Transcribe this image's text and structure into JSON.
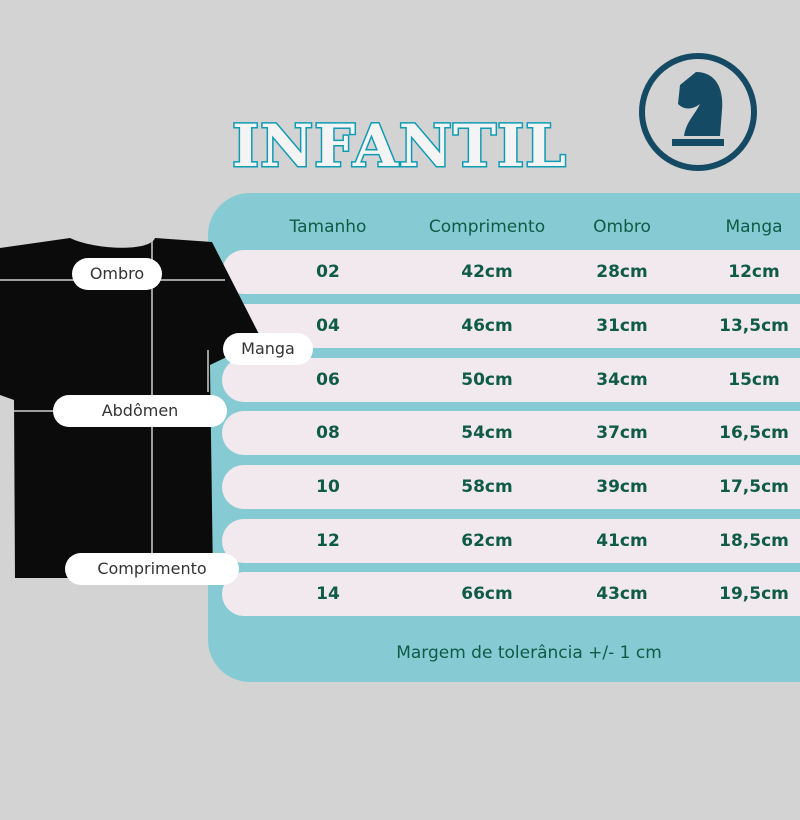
{
  "title": "INFANTIL",
  "logo_icon": "chess-knight-icon",
  "colors": {
    "background": "#d3d3d3",
    "panel": "#86cbd3",
    "row": "#f1e9ed",
    "text": "#0f5b45",
    "title_stroke": "#0e9bb4",
    "logo": "#154a64"
  },
  "garment_labels": {
    "ombro": "Ombro",
    "manga": "Manga",
    "abdomen": "Abdômen",
    "comprimento": "Comprimento"
  },
  "table": {
    "headers": [
      "Tamanho",
      "Comprimento",
      "Ombro",
      "Manga"
    ],
    "rows": [
      [
        "02",
        "42cm",
        "28cm",
        "12cm"
      ],
      [
        "04",
        "46cm",
        "31cm",
        "13,5cm"
      ],
      [
        "06",
        "50cm",
        "34cm",
        "15cm"
      ],
      [
        "08",
        "54cm",
        "37cm",
        "16,5cm"
      ],
      [
        "10",
        "58cm",
        "39cm",
        "17,5cm"
      ],
      [
        "12",
        "62cm",
        "41cm",
        "18,5cm"
      ],
      [
        "14",
        "66cm",
        "43cm",
        "19,5cm"
      ]
    ]
  },
  "footer": "Margem de tolerância +/-  1 cm"
}
